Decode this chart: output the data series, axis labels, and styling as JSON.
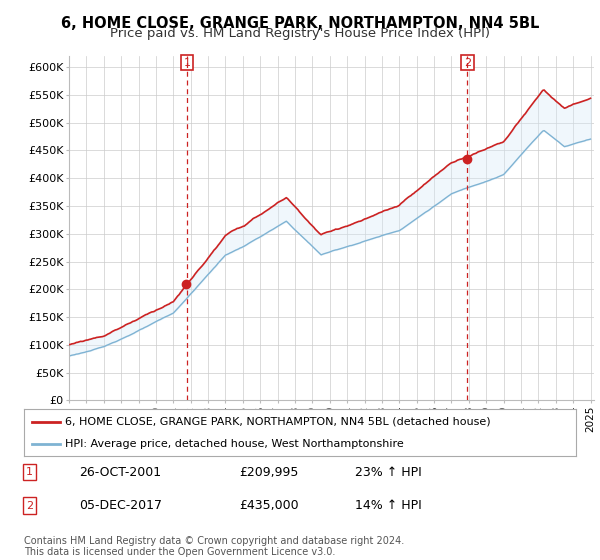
{
  "title": "6, HOME CLOSE, GRANGE PARK, NORTHAMPTON, NN4 5BL",
  "subtitle": "Price paid vs. HM Land Registry's House Price Index (HPI)",
  "ylim": [
    0,
    620000
  ],
  "yticks": [
    0,
    50000,
    100000,
    150000,
    200000,
    250000,
    300000,
    350000,
    400000,
    450000,
    500000,
    550000,
    600000
  ],
  "ytick_labels": [
    "£0",
    "£50K",
    "£100K",
    "£150K",
    "£200K",
    "£250K",
    "£300K",
    "£350K",
    "£400K",
    "£450K",
    "£500K",
    "£550K",
    "£600K"
  ],
  "background_color": "#ffffff",
  "grid_color": "#cccccc",
  "sale1_date": "26-OCT-2001",
  "sale1_price": 209995,
  "sale1_price_str": "£209,995",
  "sale1_pct": "23%",
  "sale1_x": 2001.79,
  "sale2_date": "05-DEC-2017",
  "sale2_price": 435000,
  "sale2_price_str": "£435,000",
  "sale2_pct": "14%",
  "sale2_x": 2017.92,
  "line1_color": "#cc2222",
  "line2_color": "#7fb3d3",
  "fill_color": "#d6eaf8",
  "vline_color": "#cc2222",
  "legend_label1": "6, HOME CLOSE, GRANGE PARK, NORTHAMPTON, NN4 5BL (detached house)",
  "legend_label2": "HPI: Average price, detached house, West Northamptonshire",
  "footnote": "Contains HM Land Registry data © Crown copyright and database right 2024.\nThis data is licensed under the Open Government Licence v3.0.",
  "title_fontsize": 10.5,
  "subtitle_fontsize": 9.5,
  "tick_fontsize": 8,
  "legend_fontsize": 8,
  "annot_fontsize": 9,
  "footnote_fontsize": 7
}
